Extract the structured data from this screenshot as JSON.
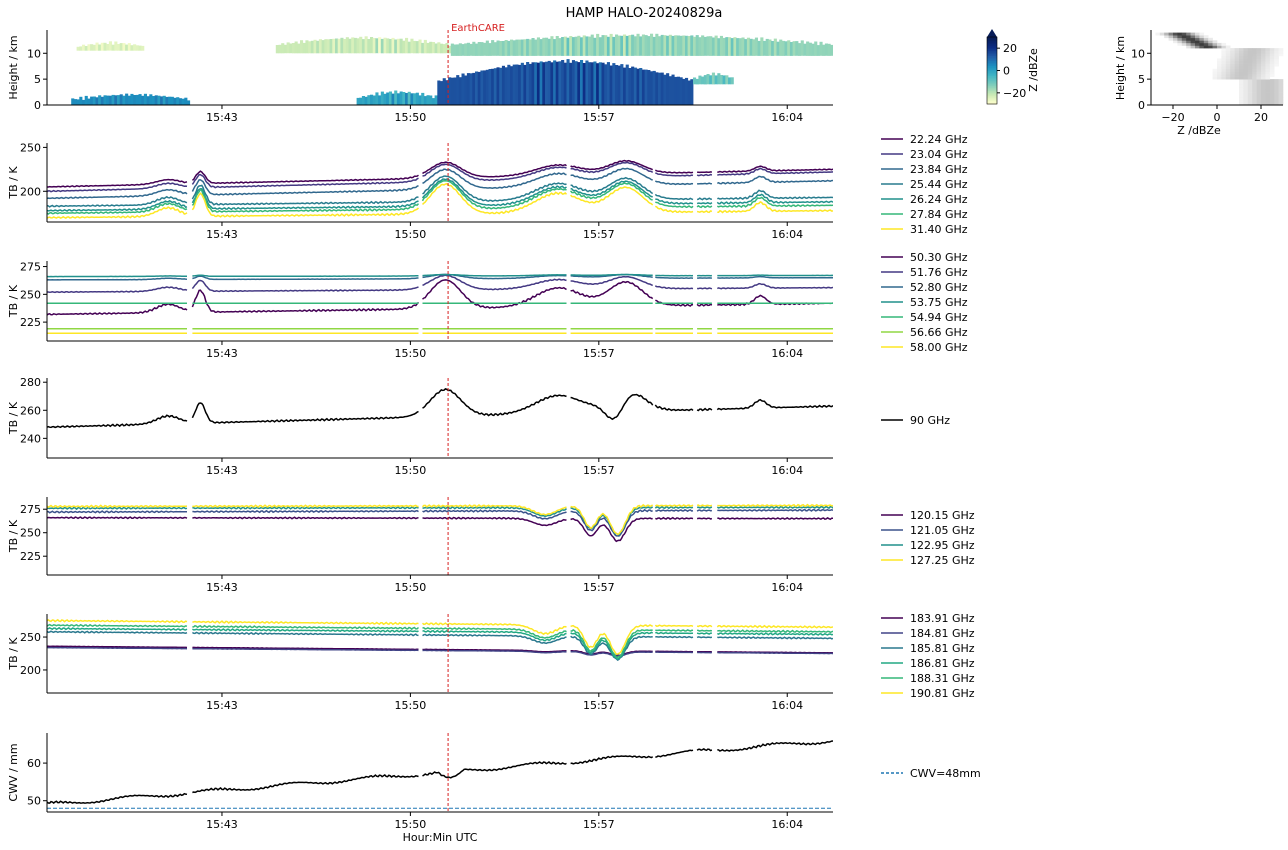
{
  "title": "HAMP HALO-20240829a",
  "time_axis": {
    "label": "Hour:Min UTC",
    "ticks": [
      "15:43",
      "15:50",
      "15:57",
      "16:04"
    ],
    "range_min": [
      36.5,
      65.7
    ]
  },
  "event": {
    "label": "EarthCARE",
    "time_min": 51.4,
    "color": "#d62020"
  },
  "colorbar": {
    "label": "Z /dBZe",
    "ticks": [
      20,
      0,
      -20
    ],
    "range": [
      -30,
      30
    ]
  },
  "profile": {
    "xlabel": "Z /dBZe",
    "ylabel": "Height / km",
    "xticks": [
      -20,
      0,
      20
    ],
    "yticks": [
      0,
      5,
      10
    ],
    "xlim": [
      -30,
      30
    ],
    "ylim": [
      0,
      14.5
    ]
  },
  "chart_data": [
    {
      "type": "heatmap",
      "name": "radar",
      "ylabel": "Height / km",
      "yticks": [
        0,
        5,
        10
      ],
      "ylim": [
        0,
        14.5
      ],
      "cloud_layers": [
        {
          "t0": 37.6,
          "t1": 40.1,
          "base_km": 10.5,
          "top_km": 12.0,
          "z": -25
        },
        {
          "t0": 45.0,
          "t1": 51.5,
          "base_km": 10.0,
          "top_km": 13.0,
          "z": -22
        },
        {
          "t0": 51.5,
          "t1": 65.7,
          "base_km": 9.5,
          "top_km": 13.5,
          "z": -15
        },
        {
          "t0": 37.4,
          "t1": 41.8,
          "base_km": 0.0,
          "top_km": 2.0,
          "z": 5
        },
        {
          "t0": 48.0,
          "t1": 51.0,
          "base_km": 0.0,
          "top_km": 2.5,
          "z": 0
        },
        {
          "t0": 51.0,
          "t1": 60.5,
          "base_km": 0.0,
          "top_km": 8.5,
          "z": 15
        },
        {
          "t0": 60.5,
          "t1": 62.0,
          "base_km": 4.0,
          "top_km": 6.0,
          "z": -10
        }
      ]
    },
    {
      "type": "line",
      "name": "K-band",
      "ylabel": "TB / K",
      "ylim": [
        165,
        255
      ],
      "yticks": [
        200,
        250
      ],
      "series": [
        {
          "name": "22.24 GHz",
          "color": "#440154",
          "base": 205,
          "end": 225,
          "amp": 0.55
        },
        {
          "name": "23.04 GHz",
          "color": "#443983",
          "base": 200,
          "end": 222,
          "amp": 0.6
        },
        {
          "name": "23.84 GHz",
          "color": "#31688e",
          "base": 192,
          "end": 212,
          "amp": 0.7
        },
        {
          "name": "25.44 GHz",
          "color": "#287c8e",
          "base": 183,
          "end": 193,
          "amp": 0.9
        },
        {
          "name": "26.24 GHz",
          "color": "#21918c",
          "base": 178,
          "end": 188,
          "amp": 0.95
        },
        {
          "name": "27.84 GHz",
          "color": "#35b779",
          "base": 175,
          "end": 184,
          "amp": 1.0
        },
        {
          "name": "31.40 GHz",
          "color": "#fde725",
          "base": 170,
          "end": 178,
          "amp": 1.05
        }
      ]
    },
    {
      "type": "line",
      "name": "V-band",
      "ylabel": "TB / K",
      "ylim": [
        208,
        280
      ],
      "yticks": [
        225,
        250,
        275
      ],
      "series": [
        {
          "name": "50.30 GHz",
          "color": "#440154",
          "base": 232,
          "end": 242,
          "amp": 1.0
        },
        {
          "name": "51.76 GHz",
          "color": "#443983",
          "base": 252,
          "end": 256,
          "amp": 0.5
        },
        {
          "name": "52.80 GHz",
          "color": "#31688e",
          "base": 263,
          "end": 265,
          "amp": 0.15
        },
        {
          "name": "53.75 GHz",
          "color": "#21918c",
          "base": 266,
          "end": 267,
          "amp": 0.05
        },
        {
          "name": "54.94 GHz",
          "color": "#35b779",
          "base": 242,
          "end": 242,
          "amp": 0
        },
        {
          "name": "56.66 GHz",
          "color": "#90d743",
          "base": 219,
          "end": 219,
          "amp": 0
        },
        {
          "name": "58.00 GHz",
          "color": "#fde725",
          "base": 215,
          "end": 215,
          "amp": 0
        }
      ]
    },
    {
      "type": "line",
      "name": "W-band",
      "ylabel": "TB / K",
      "ylim": [
        226,
        283
      ],
      "yticks": [
        240,
        260,
        280
      ],
      "series": [
        {
          "name": "90 GHz",
          "color": "#000000",
          "base": 248,
          "end": 263,
          "amp": 1.0
        }
      ]
    },
    {
      "type": "line",
      "name": "F-band",
      "ylabel": "TB / K",
      "ylim": [
        205,
        288
      ],
      "yticks": [
        225,
        250,
        275
      ],
      "series": [
        {
          "name": "120.15 GHz",
          "color": "#440154",
          "base": 266,
          "end": 265,
          "amp": 0.8
        },
        {
          "name": "121.05 GHz",
          "color": "#3b528b",
          "base": 272,
          "end": 274,
          "amp": 0.9
        },
        {
          "name": "122.95 GHz",
          "color": "#21918c",
          "base": 276,
          "end": 277,
          "amp": 0.95
        },
        {
          "name": "127.25 GHz",
          "color": "#fde725",
          "base": 278,
          "end": 279,
          "amp": 1.0
        }
      ]
    },
    {
      "type": "line",
      "name": "G-band",
      "ylabel": "TB / K",
      "ylim": [
        165,
        285
      ],
      "yticks": [
        200,
        250
      ],
      "series": [
        {
          "name": "183.91 GHz",
          "color": "#440154",
          "base": 236,
          "end": 226,
          "amp": 0.15
        },
        {
          "name": "184.81 GHz",
          "color": "#414487",
          "base": 234,
          "end": 225,
          "amp": 0.15
        },
        {
          "name": "185.81 GHz",
          "color": "#2a788e",
          "base": 258,
          "end": 248,
          "amp": 0.8
        },
        {
          "name": "186.81 GHz",
          "color": "#22a884",
          "base": 263,
          "end": 254,
          "amp": 0.9
        },
        {
          "name": "188.31 GHz",
          "color": "#35b779",
          "base": 268,
          "end": 258,
          "amp": 0.95
        },
        {
          "name": "190.81 GHz",
          "color": "#fde725",
          "base": 275,
          "end": 265,
          "amp": 1.0
        }
      ]
    },
    {
      "type": "line",
      "name": "CWV",
      "ylabel": "CWV / mm",
      "ylim": [
        47,
        68
      ],
      "yticks": [
        50,
        60
      ],
      "series": [
        {
          "name": "CWV",
          "color": "#000000",
          "base": 49,
          "end": 66,
          "amp": 1.0
        }
      ],
      "reference": {
        "name": "CWV=48mm",
        "value": 48,
        "color": "#1f77b4"
      }
    }
  ]
}
